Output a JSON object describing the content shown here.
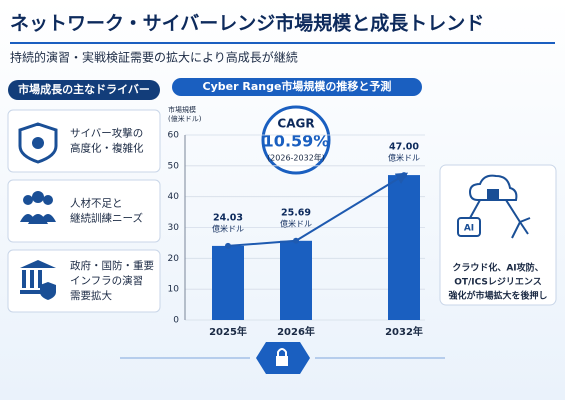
{
  "header": {
    "title": "ネットワーク・サイバーレンジ市場規模と成長トレンド",
    "subtitle": "持続的演習・実戦検証需要の拡大により高成長が継続"
  },
  "drivers": {
    "title": "市場成長の主なドライバー",
    "items": [
      [
        "サイバー攻撃の",
        "高度化・複雑化"
      ],
      [
        "人材不足と",
        "継続訓練ニーズ"
      ],
      [
        "政府・国防・重要",
        "インフラの演習",
        "需要拡大"
      ]
    ]
  },
  "side_note": [
    "クラウド化、AI攻防、",
    "OT/ICSレジリエンス",
    "強化が市場拡大を後押し"
  ],
  "chart_data": {
    "type": "bar",
    "title": "Cyber Range市場規模の推移と予測",
    "y_label": [
      "市場規模",
      "(億米ドル)"
    ],
    "categories": [
      "2025年",
      "2026年",
      "2032年"
    ],
    "values": [
      24.03,
      25.69,
      47.0
    ],
    "value_labels": [
      "24.03",
      "25.69",
      "47.00"
    ],
    "value_unit": "億米ドル",
    "color": "#1a5fc0",
    "line_color": "#1e5ab0",
    "ylim": [
      0,
      60
    ],
    "yticks": [
      0,
      10,
      20,
      30,
      40,
      50,
      60
    ],
    "grid": true,
    "cagr": {
      "label": "CAGR",
      "value": "10.59%",
      "period": "(2026-2032年)"
    }
  }
}
